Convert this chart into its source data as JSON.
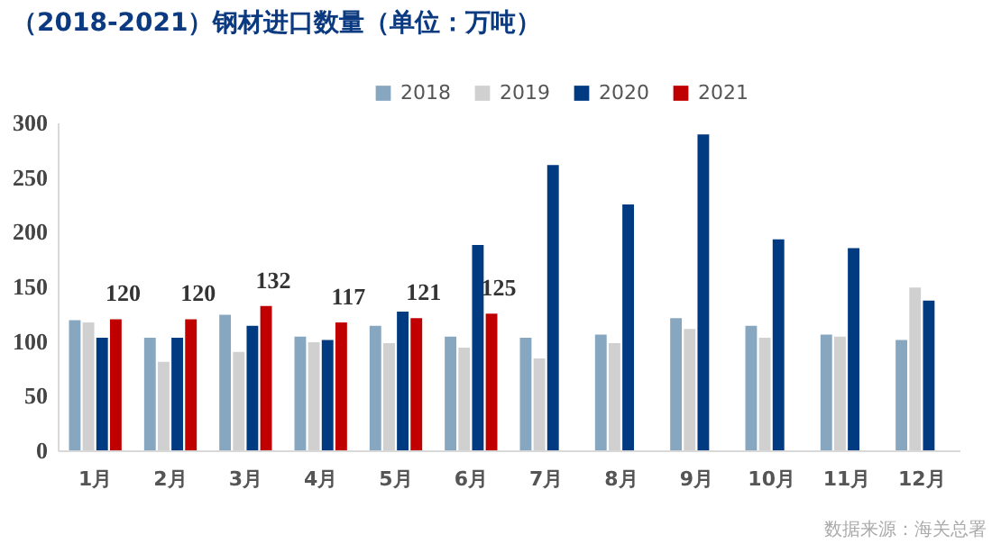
{
  "chart_data": {
    "type": "bar",
    "title": "（2018-2021）钢材进口数量（单位：万吨）",
    "categories": [
      "1月",
      "2月",
      "3月",
      "4月",
      "5月",
      "6月",
      "7月",
      "8月",
      "9月",
      "10月",
      "11月",
      "12月"
    ],
    "series": [
      {
        "name": "2018",
        "color": "#87a7c0",
        "values": [
          119,
          103,
          124,
          104,
          114,
          104,
          103,
          106,
          121,
          114,
          106,
          101
        ]
      },
      {
        "name": "2019",
        "color": "#d0d0d0",
        "values": [
          117,
          81,
          90,
          99,
          98,
          94,
          84,
          98,
          111,
          103,
          104,
          149
        ]
      },
      {
        "name": "2020",
        "color": "#003a80",
        "values": [
          103,
          103,
          114,
          101,
          127,
          188,
          261,
          225,
          289,
          193,
          185,
          137
        ]
      },
      {
        "name": "2021",
        "color": "#c00000",
        "values": [
          120,
          120,
          132,
          117,
          121,
          125,
          null,
          null,
          null,
          null,
          null,
          null
        ],
        "value_labels": [
          "120",
          "120",
          "132",
          "117",
          "121",
          "125",
          null,
          null,
          null,
          null,
          null,
          null
        ]
      }
    ],
    "ylim": [
      0,
      300
    ],
    "yticks": [
      0,
      50,
      100,
      150,
      200,
      250,
      300
    ],
    "legend": "top",
    "annotations": [
      "数据来源：海关总署"
    ]
  }
}
